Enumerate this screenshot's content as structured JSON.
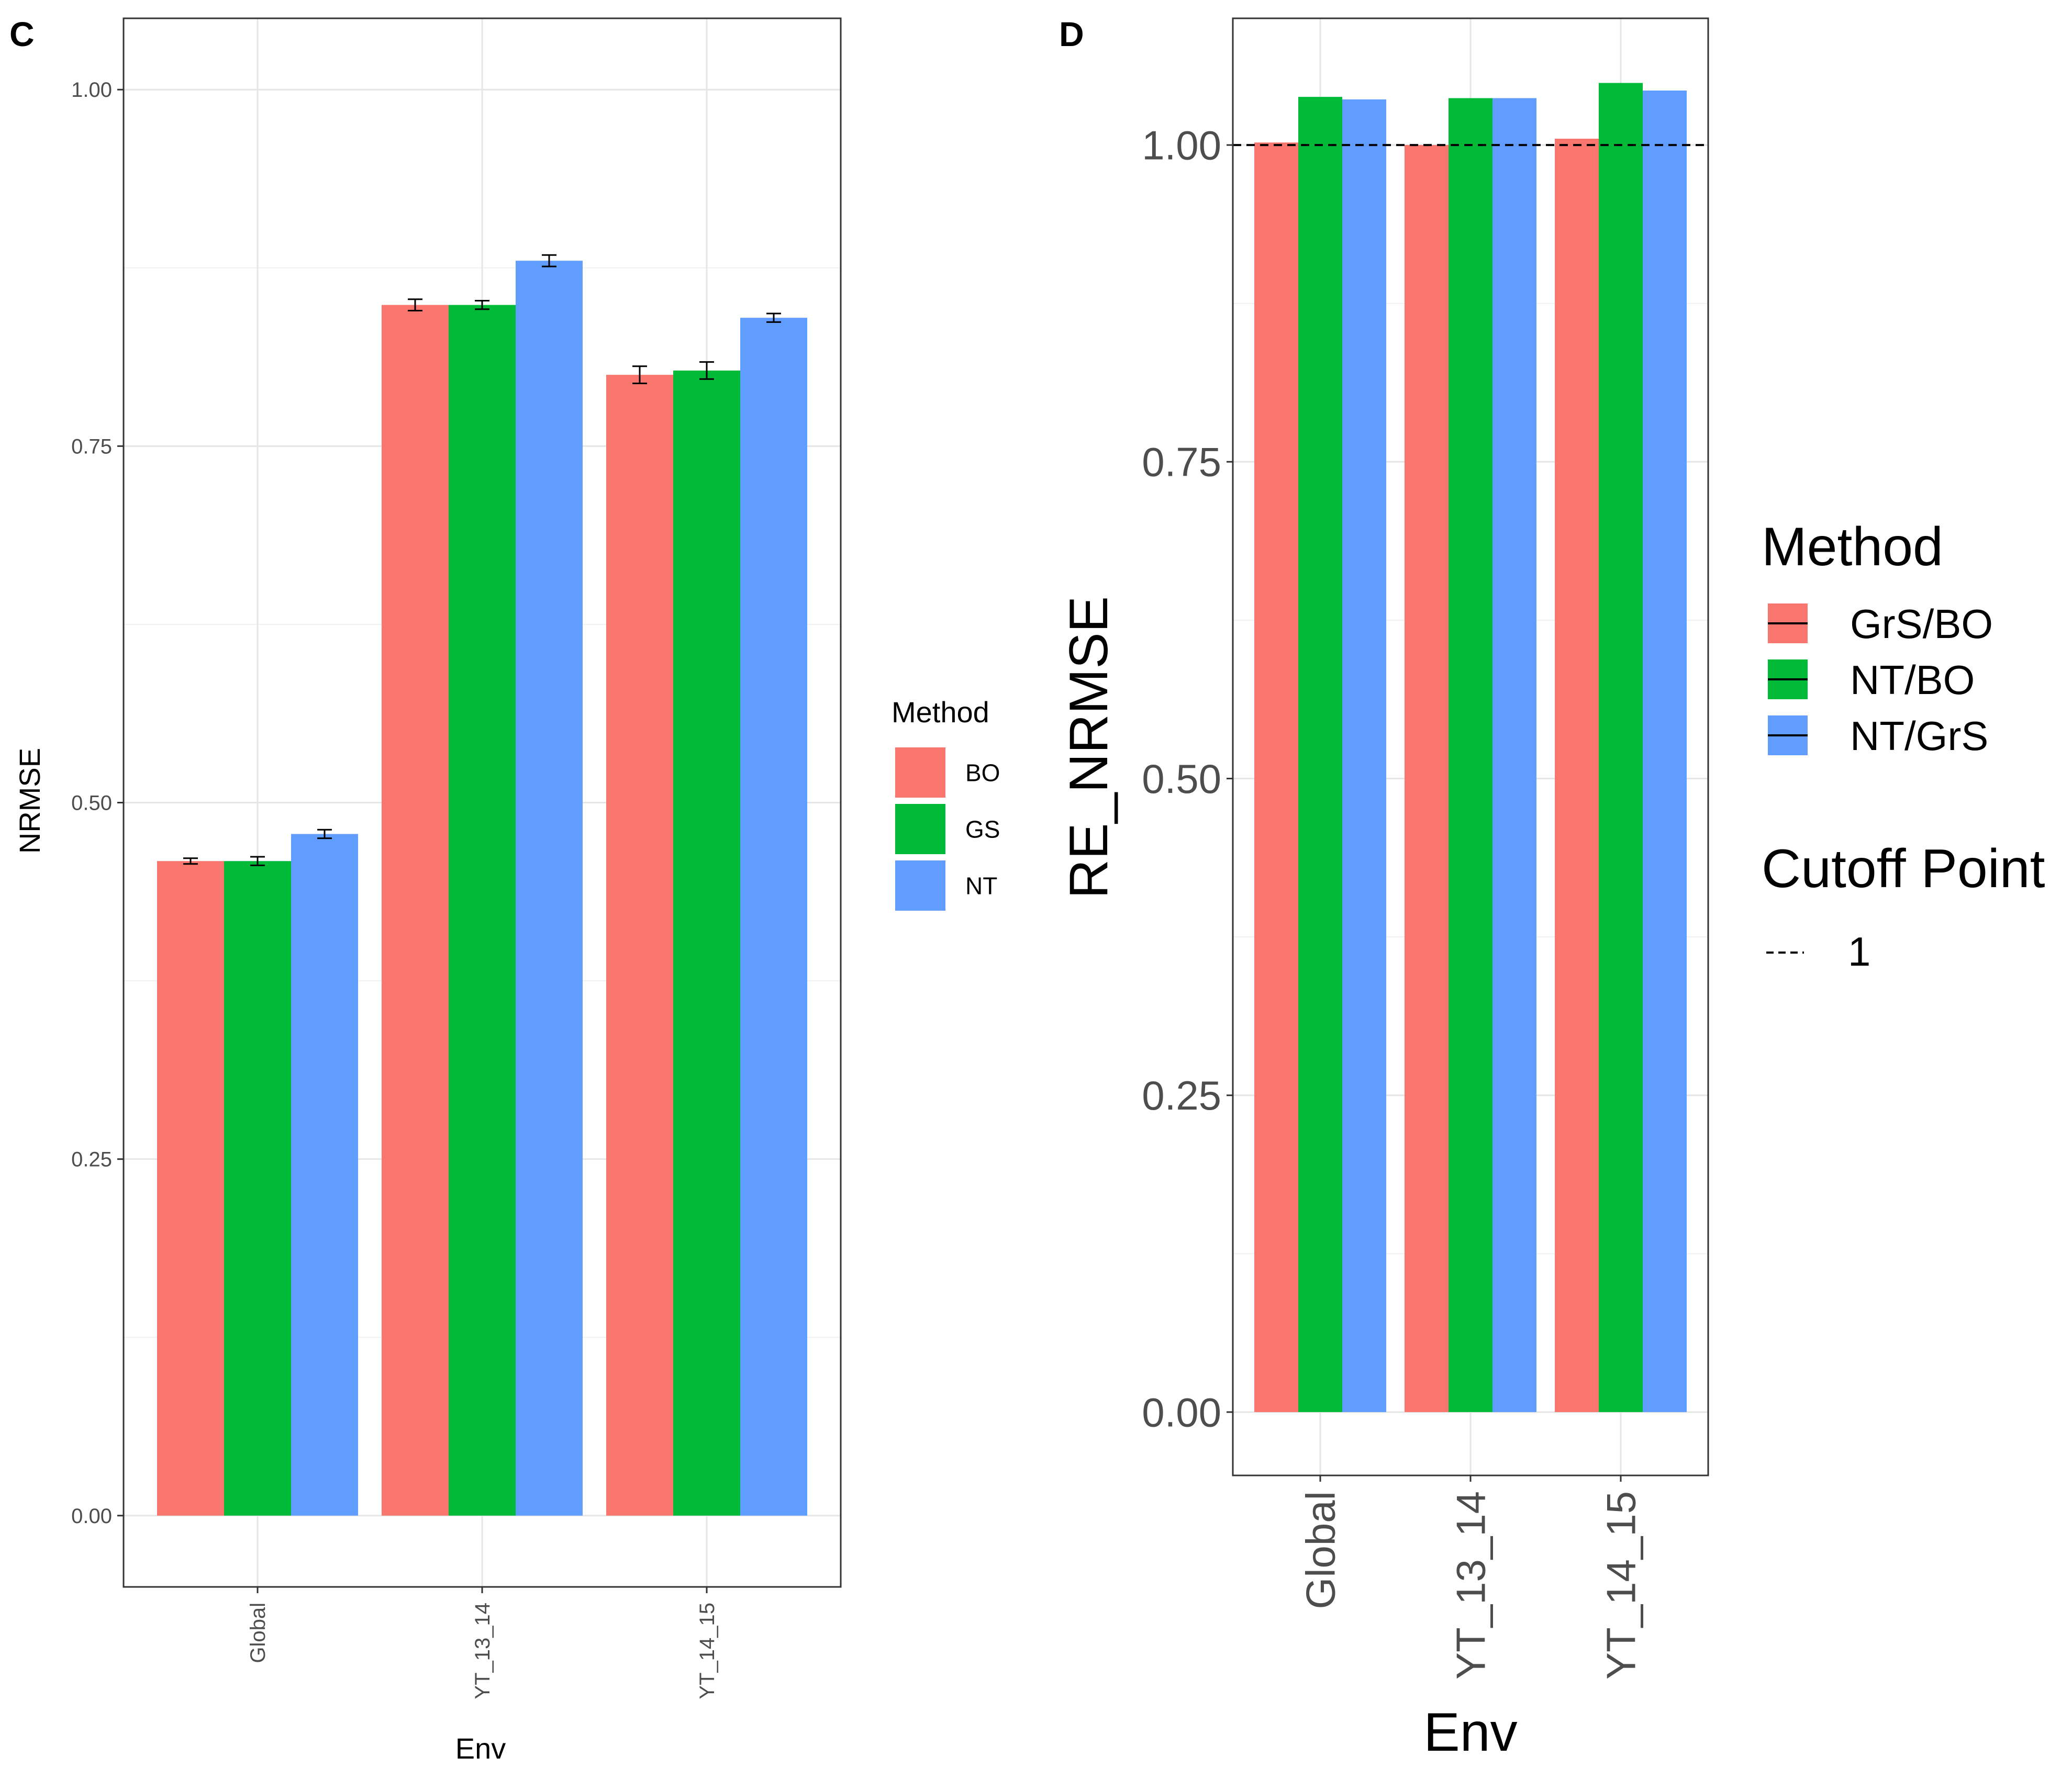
{
  "chart_data": [
    {
      "panel_label": "C",
      "type": "bar",
      "xlabel": "Env",
      "ylabel": "NRMSE",
      "categories": [
        "Global",
        "YT_13_14",
        "YT_14_15"
      ],
      "ylim": [
        -0.05,
        1.05
      ],
      "yticks": [
        0.0,
        0.25,
        0.5,
        0.75,
        1.0
      ],
      "ytick_labels": [
        "0.00",
        "0.25",
        "0.50",
        "0.75",
        "1.00"
      ],
      "grid": true,
      "legend": {
        "title": "Method",
        "position": "right"
      },
      "series": [
        {
          "name": "BO",
          "color": "#F8766D",
          "values": [
            0.459,
            0.849,
            0.8
          ],
          "errors": [
            0.002,
            0.004,
            0.006
          ]
        },
        {
          "name": "GS",
          "color": "#00BA38",
          "values": [
            0.459,
            0.849,
            0.803
          ],
          "errors": [
            0.003,
            0.003,
            0.006
          ]
        },
        {
          "name": "NT",
          "color": "#619CFF",
          "values": [
            0.478,
            0.88,
            0.84
          ],
          "errors": [
            0.003,
            0.004,
            0.003
          ]
        }
      ]
    },
    {
      "panel_label": "D",
      "type": "bar",
      "xlabel": "Env",
      "ylabel": "RE_NRMSE",
      "categories": [
        "Global",
        "YT_13_14",
        "YT_14_15"
      ],
      "ylim": [
        -0.05,
        1.1
      ],
      "yticks": [
        0.0,
        0.25,
        0.5,
        0.75,
        1.0
      ],
      "ytick_labels": [
        "0.00",
        "0.25",
        "0.50",
        "0.75",
        "1.00"
      ],
      "grid": true,
      "cutoff": {
        "value": 1,
        "label": "1",
        "style": "dashed"
      },
      "legend": {
        "title": "Method",
        "position": "right",
        "cutoff_title": "Cutoff Point"
      },
      "series": [
        {
          "name": "GrS/BO",
          "color": "#F8766D",
          "values": [
            1.002,
            1.0,
            1.005
          ]
        },
        {
          "name": "NT/BO",
          "color": "#00BA38",
          "values": [
            1.038,
            1.037,
            1.049
          ]
        },
        {
          "name": "NT/GrS",
          "color": "#619CFF",
          "values": [
            1.036,
            1.037,
            1.043
          ]
        }
      ]
    }
  ]
}
